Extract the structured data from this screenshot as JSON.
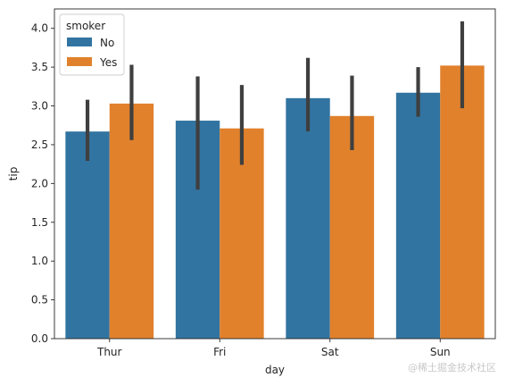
{
  "chart_data": {
    "type": "bar",
    "categories": [
      "Thur",
      "Fri",
      "Sat",
      "Sun"
    ],
    "xlabel": "day",
    "ylabel": "tip",
    "ylim": [
      0,
      4.25
    ],
    "yticks": [
      0.0,
      0.5,
      1.0,
      1.5,
      2.0,
      2.5,
      3.0,
      3.5,
      4.0
    ],
    "ytick_labels": [
      "0.0",
      "0.5",
      "1.0",
      "1.5",
      "2.0",
      "2.5",
      "3.0",
      "3.5",
      "4.0"
    ],
    "grid": false,
    "legend": {
      "title": "smoker",
      "placement": "upper-left"
    },
    "series": [
      {
        "name": "No",
        "color": "#3274a1",
        "values": [
          2.67,
          2.81,
          3.1,
          3.17
        ],
        "ci_low": [
          2.29,
          1.92,
          2.67,
          2.86
        ],
        "ci_high": [
          3.08,
          3.38,
          3.62,
          3.5
        ]
      },
      {
        "name": "Yes",
        "color": "#e1812c",
        "values": [
          3.03,
          2.71,
          2.87,
          3.52
        ],
        "ci_low": [
          2.56,
          2.24,
          2.43,
          2.97
        ],
        "ci_high": [
          3.53,
          3.27,
          3.39,
          4.09
        ]
      }
    ],
    "errorbar_color": "#3f3f3f"
  },
  "watermark": "@稀土掘金技术社区"
}
